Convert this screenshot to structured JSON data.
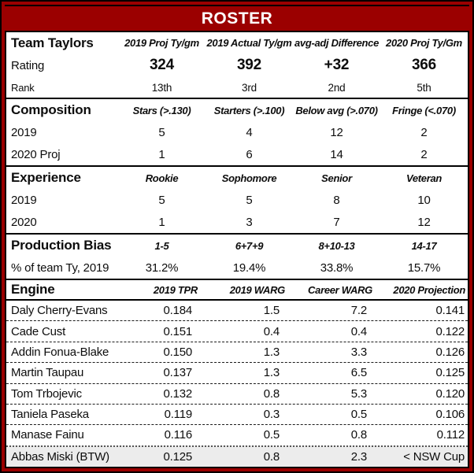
{
  "title": "ROSTER",
  "colors": {
    "brand_red": "#9B0000",
    "border_black": "#000000",
    "highlight_row_bg": "#ECECEC",
    "title_text": "#FFFFFF"
  },
  "sections": [
    {
      "label": "Team Taylors",
      "headers": [
        "2019 Proj Ty/gm",
        "2019 Actual Ty/gm",
        "avg-adj Difference",
        "2020 Proj Ty/Gm"
      ],
      "rows": [
        {
          "label": "Rating",
          "values": [
            "324",
            "392",
            "+32",
            "366"
          ]
        },
        {
          "label": "Rank",
          "values": [
            "13th",
            "3rd",
            "2nd",
            "5th"
          ]
        }
      ]
    },
    {
      "label": "Composition",
      "headers": [
        "Stars (>.130)",
        "Starters (>.100)",
        "Below avg (>.070)",
        "Fringe (<.070)"
      ],
      "rows": [
        {
          "label": "2019",
          "values": [
            "5",
            "4",
            "12",
            "2"
          ]
        },
        {
          "label": "2020 Proj",
          "values": [
            "1",
            "6",
            "14",
            "2"
          ]
        }
      ]
    },
    {
      "label": "Experience",
      "headers": [
        "Rookie",
        "Sophomore",
        "Senior",
        "Veteran"
      ],
      "rows": [
        {
          "label": "2019",
          "values": [
            "5",
            "5",
            "8",
            "10"
          ]
        },
        {
          "label": "2020",
          "values": [
            "1",
            "3",
            "7",
            "12"
          ]
        }
      ]
    },
    {
      "label": "Production Bias",
      "headers": [
        "1-5",
        "6+7+9",
        "8+10-13",
        "14-17"
      ],
      "rows": [
        {
          "label": "% of team Ty, 2019",
          "values": [
            "31.2%",
            "19.4%",
            "33.8%",
            "15.7%"
          ]
        }
      ]
    }
  ],
  "engine": {
    "label": "Engine",
    "headers": [
      "2019 TPR",
      "2019 WARG",
      "Career WARG",
      "2020 Projection"
    ],
    "players": [
      {
        "name": "Daly Cherry-Evans",
        "values": [
          "0.184",
          "1.5",
          "7.2",
          "0.141"
        ],
        "highlight": false
      },
      {
        "name": "Cade Cust",
        "values": [
          "0.151",
          "0.4",
          "0.4",
          "0.122"
        ],
        "highlight": false
      },
      {
        "name": "Addin Fonua-Blake",
        "values": [
          "0.150",
          "1.3",
          "3.3",
          "0.126"
        ],
        "highlight": false
      },
      {
        "name": "Martin Taupau",
        "values": [
          "0.137",
          "1.3",
          "6.5",
          "0.125"
        ],
        "highlight": false
      },
      {
        "name": "Tom Trbojevic",
        "values": [
          "0.132",
          "0.8",
          "5.3",
          "0.120"
        ],
        "highlight": false
      },
      {
        "name": "Taniela Paseka",
        "values": [
          "0.119",
          "0.3",
          "0.5",
          "0.106"
        ],
        "highlight": false
      },
      {
        "name": "Manase Fainu",
        "values": [
          "0.116",
          "0.5",
          "0.8",
          "0.112"
        ],
        "highlight": false
      },
      {
        "name": "Abbas Miski (BTW)",
        "values": [
          "0.125",
          "0.8",
          "2.3",
          "< NSW Cup"
        ],
        "highlight": true
      }
    ]
  },
  "chart_data": [
    {
      "type": "table",
      "title": "Team Taylors",
      "columns": [
        "",
        "2019 Proj Ty/gm",
        "2019 Actual Ty/gm",
        "avg-adj Difference",
        "2020 Proj Ty/Gm"
      ],
      "rows": [
        [
          "Rating",
          324,
          392,
          "+32",
          366
        ],
        [
          "Rank",
          "13th",
          "3rd",
          "2nd",
          "5th"
        ]
      ]
    },
    {
      "type": "table",
      "title": "Composition",
      "columns": [
        "",
        "Stars (>.130)",
        "Starters (>.100)",
        "Below avg (>.070)",
        "Fringe (<.070)"
      ],
      "rows": [
        [
          "2019",
          5,
          4,
          12,
          2
        ],
        [
          "2020 Proj",
          1,
          6,
          14,
          2
        ]
      ]
    },
    {
      "type": "table",
      "title": "Experience",
      "columns": [
        "",
        "Rookie",
        "Sophomore",
        "Senior",
        "Veteran"
      ],
      "rows": [
        [
          "2019",
          5,
          5,
          8,
          10
        ],
        [
          "2020",
          1,
          3,
          7,
          12
        ]
      ]
    },
    {
      "type": "table",
      "title": "Production Bias",
      "columns": [
        "",
        "1-5",
        "6+7+9",
        "8+10-13",
        "14-17"
      ],
      "rows": [
        [
          "% of team Ty, 2019",
          "31.2%",
          "19.4%",
          "33.8%",
          "15.7%"
        ]
      ]
    },
    {
      "type": "table",
      "title": "Engine",
      "columns": [
        "Player",
        "2019 TPR",
        "2019 WARG",
        "Career WARG",
        "2020 Projection"
      ],
      "rows": [
        [
          "Daly Cherry-Evans",
          0.184,
          1.5,
          7.2,
          0.141
        ],
        [
          "Cade Cust",
          0.151,
          0.4,
          0.4,
          0.122
        ],
        [
          "Addin Fonua-Blake",
          0.15,
          1.3,
          3.3,
          0.126
        ],
        [
          "Martin Taupau",
          0.137,
          1.3,
          6.5,
          0.125
        ],
        [
          "Tom Trbojevic",
          0.132,
          0.8,
          5.3,
          0.12
        ],
        [
          "Taniela Paseka",
          0.119,
          0.3,
          0.5,
          0.106
        ],
        [
          "Manase Fainu",
          0.116,
          0.5,
          0.8,
          0.112
        ],
        [
          "Abbas Miski (BTW)",
          0.125,
          0.8,
          2.3,
          "< NSW Cup"
        ]
      ]
    }
  ]
}
